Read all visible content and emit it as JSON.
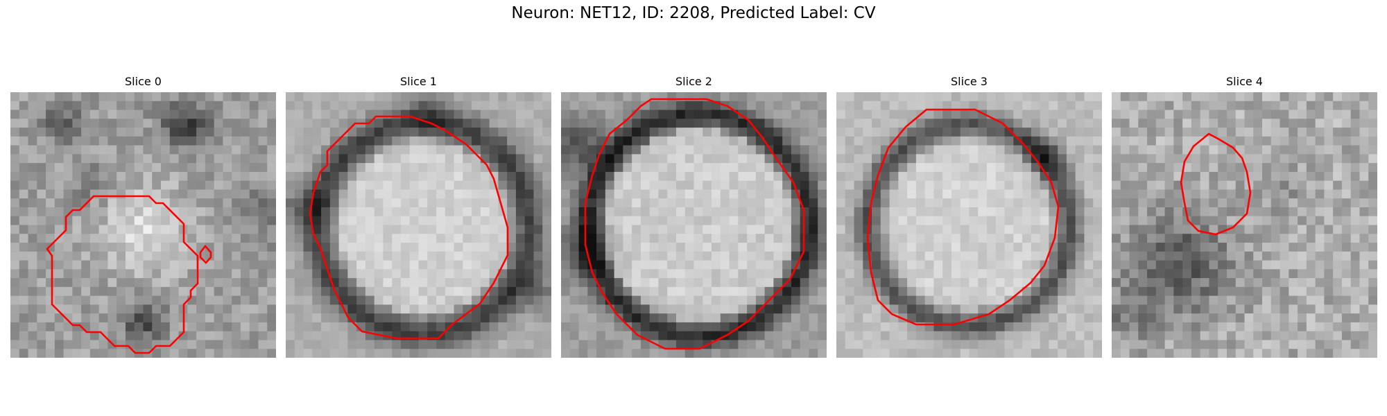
{
  "figure": {
    "title": "Neuron: NET12, ID: 2208, Predicted Label: CV"
  },
  "slices": [
    {
      "title": "Slice 0"
    },
    {
      "title": "Slice 1"
    },
    {
      "title": "Slice 2"
    },
    {
      "title": "Slice 3"
    },
    {
      "title": "Slice 4"
    }
  ],
  "colors": {
    "contour": "#ff0000",
    "background": "#ffffff"
  }
}
